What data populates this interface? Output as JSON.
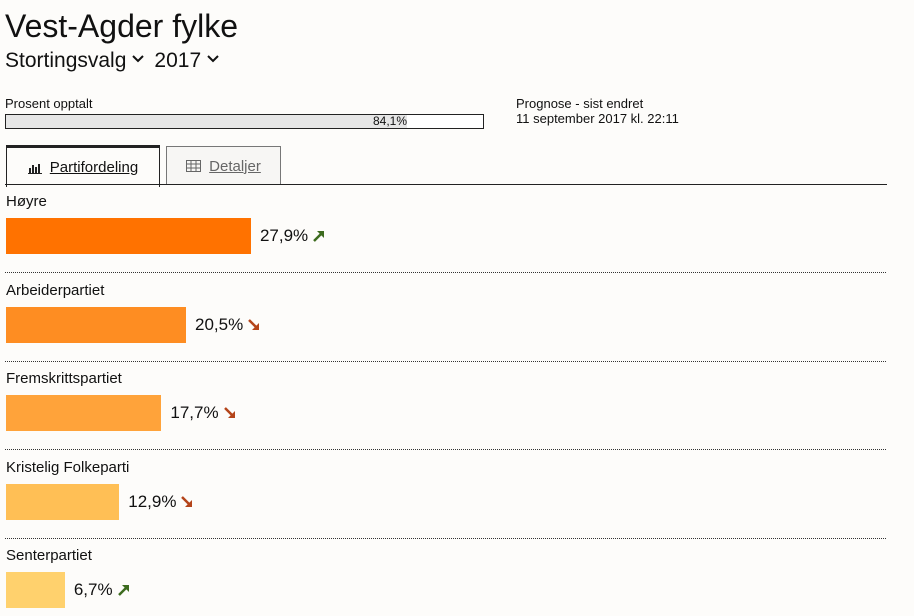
{
  "title": "Vest-Agder fylke",
  "selectors": {
    "election": "Stortingsvalg",
    "year": "2017"
  },
  "progress": {
    "label": "Prosent opptalt",
    "value": 84.1,
    "value_text": "84,1%"
  },
  "prognose": {
    "line1": "Prognose - sist endret",
    "line2": "11 september 2017 kl. 22:11"
  },
  "tabs": [
    {
      "label": "Partifordeling",
      "icon": "bar-chart-icon",
      "active": true
    },
    {
      "label": "Detaljer",
      "icon": "table-grid-icon",
      "active": false
    }
  ],
  "chart_data": {
    "type": "bar",
    "categories": [
      "Høyre",
      "Arbeiderpartiet",
      "Fremskrittspartiet",
      "Kristelig Folkeparti",
      "Senterpartiet"
    ],
    "values": [
      27.9,
      20.5,
      17.7,
      12.9,
      6.7
    ],
    "value_labels": [
      "27,9%",
      "20,5%",
      "17,7%",
      "12,9%",
      "6,7%"
    ],
    "trends": [
      "up",
      "down",
      "down",
      "down",
      "up"
    ],
    "colors": [
      "#ff7200",
      "#fe8d22",
      "#ffa33a",
      "#ffbf55",
      "#ffd16d"
    ],
    "trend_colors": {
      "up": "#3d6b1e",
      "down": "#b4441a"
    }
  }
}
